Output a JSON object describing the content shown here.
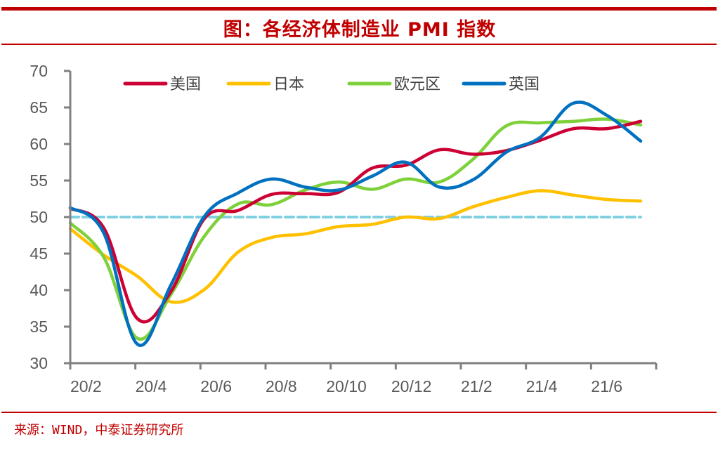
{
  "header": {
    "title": "图：各经济体制造业 PMI 指数"
  },
  "footer": {
    "source": "来源：WIND，中泰证券研究所"
  },
  "chart_data": {
    "type": "line",
    "title": "图：各经济体制造业 PMI 指数",
    "xlabel": "",
    "ylabel": "",
    "ylim": [
      30,
      70
    ],
    "yticks": [
      30,
      35,
      40,
      45,
      50,
      55,
      60,
      65,
      70
    ],
    "xtick_labels": [
      "20/2",
      "20/4",
      "20/6",
      "20/8",
      "20/10",
      "20/12",
      "21/2",
      "21/4",
      "21/6"
    ],
    "x": [
      "20/2",
      "20/3",
      "20/4",
      "20/5",
      "20/6",
      "20/7",
      "20/8",
      "20/9",
      "20/10",
      "20/11",
      "20/12",
      "21/1",
      "21/2",
      "21/3",
      "21/4",
      "21/5",
      "21/6",
      "21/7"
    ],
    "grid": false,
    "legend_position": "top",
    "reference_line": {
      "value": 50,
      "color": "#7fd0e0",
      "style": "dashed"
    },
    "series": [
      {
        "name": "美国",
        "color": "#cc0033",
        "values": [
          51.2,
          48.5,
          36.1,
          39.8,
          49.8,
          50.9,
          53.1,
          53.2,
          53.4,
          56.7,
          57.1,
          59.2,
          58.6,
          59.1,
          60.5,
          62.1,
          62.1,
          63.1
        ]
      },
      {
        "name": "日本",
        "color": "#ffc000",
        "values": [
          48.4,
          44.8,
          41.9,
          38.4,
          40.1,
          45.2,
          47.2,
          47.7,
          48.7,
          49.0,
          50.0,
          49.8,
          51.4,
          52.7,
          53.6,
          53.0,
          52.4,
          52.2
        ]
      },
      {
        "name": "欧元区",
        "color": "#7fd13b",
        "values": [
          49.2,
          44.5,
          33.4,
          39.4,
          47.4,
          51.8,
          51.7,
          53.7,
          54.8,
          53.8,
          55.2,
          54.8,
          57.9,
          62.5,
          62.9,
          63.1,
          63.4,
          62.6
        ]
      },
      {
        "name": "英国",
        "color": "#0070c0",
        "values": [
          51.3,
          47.8,
          32.6,
          40.7,
          50.1,
          53.3,
          55.2,
          54.1,
          53.7,
          55.6,
          57.5,
          54.1,
          55.1,
          58.9,
          60.9,
          65.6,
          63.9,
          60.4
        ]
      }
    ]
  }
}
